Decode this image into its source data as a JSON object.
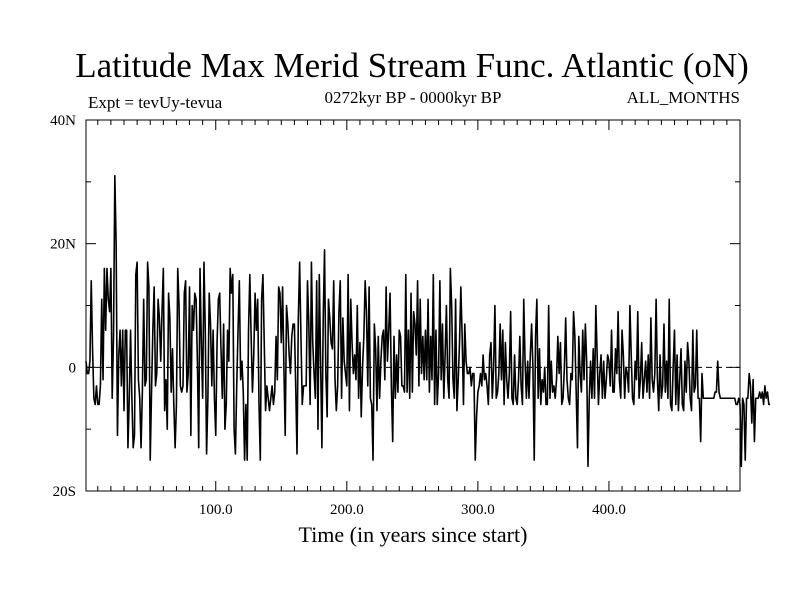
{
  "header": {
    "title": "Latitude Max Merid Stream Func. Atlantic (oN)",
    "expt": "Expt = tevUy-tevua",
    "period": "0272kyr BP - 0000kyr BP",
    "months": "ALL_MONTHS"
  },
  "chart_data": {
    "type": "line",
    "title": "Latitude Max Merid Stream Func. Atlantic (oN)",
    "xlabel": "Time (in years since start)",
    "ylabel": "",
    "xlim": [
      1,
      500
    ],
    "ylim": [
      -20,
      40
    ],
    "x_ticks": [
      100,
      200,
      300,
      400
    ],
    "x_tick_labels": [
      "100.0",
      "200.0",
      "300.0",
      "400.0"
    ],
    "y_ticks": [
      -20,
      0,
      20,
      40
    ],
    "y_tick_labels": [
      "20S",
      "0",
      "20N",
      "40N"
    ],
    "reference_line": {
      "y": 0,
      "style": "dashed"
    },
    "line_color": "#000000",
    "series": [
      {
        "x_start": 1,
        "x_step": 1,
        "values": [
          1,
          -1,
          -1,
          1,
          14,
          3,
          -5,
          -6,
          -3,
          -6,
          -6,
          -3,
          11,
          -2,
          16,
          6,
          16,
          11,
          9,
          16,
          -5,
          5,
          31,
          20,
          -11,
          2,
          6,
          -3,
          6,
          -7,
          6,
          6,
          -13,
          -5,
          6,
          -5,
          -13,
          -11,
          15,
          17,
          -2,
          -5,
          -13,
          -4,
          11,
          -3,
          -2,
          17,
          13,
          -15,
          -4,
          6,
          13,
          -3,
          -1,
          11,
          8,
          1,
          9,
          16,
          -7,
          -2,
          -10,
          12,
          8,
          -4,
          3,
          -6,
          -13,
          -6,
          16,
          10,
          -3,
          -4,
          -3,
          12,
          14,
          -4,
          -1,
          13,
          -11,
          10,
          6,
          12,
          11,
          1,
          -13,
          16,
          4,
          -5,
          17,
          6,
          -14,
          -5,
          12,
          7,
          -3,
          6,
          -5,
          -11,
          4,
          11,
          12,
          3,
          -5,
          7,
          -10,
          -6,
          6,
          1,
          16,
          12,
          15,
          -10,
          -14,
          -3,
          6,
          14,
          -2,
          1,
          -4,
          -15,
          -6,
          -15,
          6,
          15,
          5,
          -4,
          2,
          12,
          6,
          11,
          -6,
          -15,
          11,
          15,
          4,
          -7,
          -3,
          -5,
          -7,
          -5,
          -3,
          -6,
          -4,
          5,
          -2,
          13,
          12,
          4,
          13,
          0,
          -11,
          10,
          7,
          2,
          -1,
          5,
          7,
          7,
          -3,
          -14,
          8,
          17,
          5,
          -6,
          -3,
          -3,
          -3,
          14,
          7,
          -6,
          17,
          4,
          -1,
          -5,
          14,
          -10,
          15,
          1,
          -13,
          8,
          19,
          -1,
          -8,
          11,
          8,
          4,
          3,
          14,
          -2,
          -7,
          -3,
          9,
          14,
          -5,
          8,
          1,
          -1,
          -3,
          15,
          -7,
          11,
          4,
          -1,
          2,
          -2,
          10,
          -5,
          4,
          -8,
          0,
          5,
          14,
          9,
          -3,
          13,
          -5,
          -6,
          -15,
          7,
          3,
          -7,
          5,
          -5,
          1,
          5,
          6,
          -2,
          13,
          1,
          6,
          12,
          -3,
          -12,
          5,
          -5,
          2,
          -4,
          6,
          5,
          -3,
          -3,
          -4,
          15,
          -4,
          6,
          -5,
          12,
          -4,
          9,
          7,
          2,
          14,
          -3,
          11,
          -1,
          5,
          -2,
          6,
          -2,
          11,
          -4,
          5,
          -2,
          15,
          -6,
          6,
          -6,
          -1,
          14,
          -2,
          7,
          -5,
          2,
          10,
          -2,
          -5,
          16,
          10,
          -2,
          -5,
          11,
          -7,
          -2,
          4,
          13,
          5,
          -6,
          7,
          1,
          -1,
          -1,
          0,
          -3,
          -1,
          -1,
          -15,
          -8,
          -4,
          -3,
          -1,
          -3,
          2,
          -2,
          -1,
          -3,
          -6,
          2,
          4,
          -5,
          0,
          10,
          -5,
          -4,
          -1,
          7,
          -2,
          6,
          -6,
          4,
          -2,
          -5,
          -1,
          9,
          -5,
          -6,
          2,
          -5,
          -6,
          -2,
          5,
          -3,
          -6,
          11,
          1,
          -5,
          1,
          -5,
          2,
          7,
          0,
          -15,
          5,
          11,
          -5,
          3,
          -6,
          -2,
          -4,
          0,
          -6,
          -6,
          10,
          -5,
          1,
          -4,
          -3,
          -5,
          -2,
          5,
          -1,
          4,
          -6,
          -5,
          0,
          8,
          -2,
          -5,
          -6,
          -1,
          -2,
          9,
          5,
          -4,
          -13,
          5,
          -1,
          -4,
          6,
          -2,
          7,
          1,
          -16,
          -5,
          1,
          -5,
          3,
          -5,
          10,
          2,
          -6,
          -1,
          2,
          -5,
          1,
          -5,
          -2,
          2,
          1,
          -3,
          6,
          -4,
          -4,
          3,
          -1,
          9,
          -2,
          -5,
          6,
          2,
          -5,
          0,
          -1,
          -4,
          10,
          2,
          -5,
          -6,
          1,
          -2,
          9,
          -5,
          -2,
          4,
          -5,
          -2,
          1,
          -4,
          2,
          -5,
          8,
          -2,
          -4,
          -1,
          11,
          -2,
          -7,
          2,
          -5,
          -3,
          7,
          -4,
          1,
          -5,
          11,
          -6,
          -7,
          0,
          6,
          -6,
          2,
          -7,
          -2,
          3,
          -6,
          -7,
          1,
          -4,
          4,
          1,
          -5,
          -7,
          6,
          -4,
          -3,
          6,
          -5,
          -5,
          -12,
          -1,
          -5,
          -5,
          -5,
          -5,
          -5,
          -5,
          -5,
          -5,
          -5,
          -4,
          -4,
          1,
          -4,
          -5,
          -5,
          -5,
          -5,
          -5,
          -5,
          -5,
          -5,
          -5,
          -5,
          -5,
          -5,
          -6,
          -6,
          -5,
          -6,
          -16,
          -5,
          -6,
          -15,
          -5,
          -5,
          -1,
          -3,
          -9,
          -2,
          -12,
          -5,
          -5,
          -5,
          -4,
          -5,
          -4,
          -6,
          -3,
          -5,
          -4,
          -6,
          -6
        ]
      }
    ]
  }
}
